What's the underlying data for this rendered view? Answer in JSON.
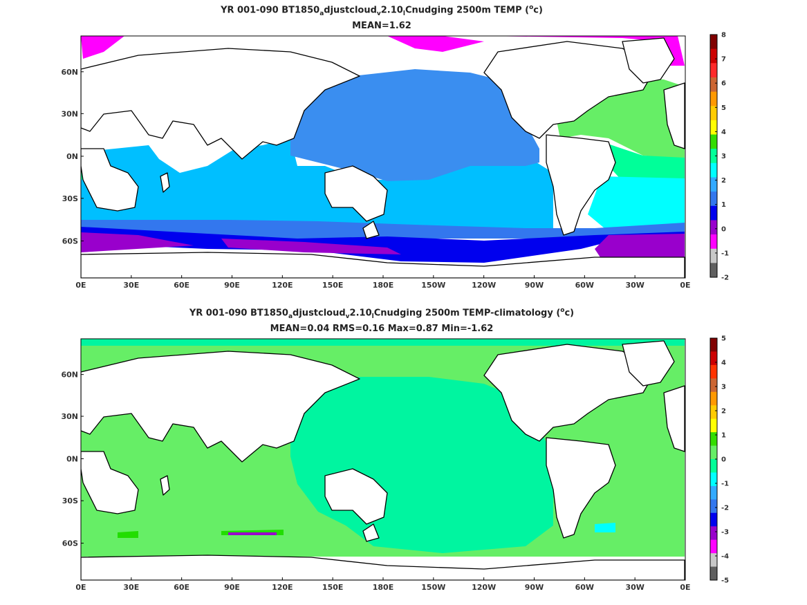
{
  "maps": [
    {
      "id": "top",
      "title_parts": [
        "YR 001-090 BT1850",
        "a",
        "djustcloud",
        "v",
        "2.10",
        "l",
        "Cnudging 2500m TEMP (",
        "o",
        "c)"
      ],
      "stats_line": "MEAN=1.62",
      "variable": "2500m TEMP",
      "units": "oc",
      "mean": 1.62,
      "colorbar": {
        "ticks": [
          "8",
          "7",
          "6",
          "5",
          "4",
          "3",
          "2",
          "1",
          "0",
          "-1",
          "-2"
        ],
        "colors": [
          "#800000",
          "#cc0000",
          "#ff2a2a",
          "#cc6633",
          "#ff9900",
          "#ffcc00",
          "#ffff00",
          "#33dd00",
          "#00ff99",
          "#00ffff",
          "#33aaff",
          "#3377ee",
          "#0000ee",
          "#9900cc",
          "#ff00ff",
          "#c8c8c8",
          "#606060"
        ]
      }
    },
    {
      "id": "bottom",
      "title_parts": [
        "YR 001-090 BT1850",
        "a",
        "djustcloud",
        "v",
        "2.10",
        "l",
        "Cnudging 2500m TEMP-climatology (",
        "o",
        "c)"
      ],
      "stats_line": "MEAN=0.04   RMS=0.16   Max=0.87   Min=-1.62",
      "variable": "2500m TEMP-climatology",
      "units": "oc",
      "mean": 0.04,
      "rms": 0.16,
      "max": 0.87,
      "min": -1.62,
      "colorbar": {
        "ticks": [
          "5",
          "4",
          "3",
          "2",
          "1",
          "0",
          "-1",
          "-2",
          "-3",
          "-4",
          "-5"
        ],
        "colors": [
          "#800000",
          "#cc0000",
          "#ff3300",
          "#cc6633",
          "#ff9900",
          "#ffcc00",
          "#ffff00",
          "#33dd00",
          "#66ee66",
          "#00ff99",
          "#00ffff",
          "#33aaff",
          "#3377ee",
          "#0000ee",
          "#9900cc",
          "#ff00ff",
          "#c8c8c8",
          "#606060"
        ]
      }
    }
  ],
  "x_ticks": [
    "0E",
    "30E",
    "60E",
    "90E",
    "120E",
    "150E",
    "180E",
    "150W",
    "120W",
    "90W",
    "60W",
    "30W",
    "0E"
  ],
  "y_ticks": [
    "60N",
    "30N",
    "0N",
    "30S",
    "60S"
  ],
  "colors": {
    "land": "#ffffff",
    "coast": "#000000",
    "top_pacific": "#3a8ef0",
    "top_indian": "#00bfff",
    "top_atl_north": "#66ee66",
    "top_atl_mid": "#00ff99",
    "top_atl_south": "#00ffff",
    "top_south_deep": "#0000ee",
    "top_south_mid": "#3377ee",
    "top_antarctic": "#9900cc",
    "top_arctic": "#ff00ff",
    "bot_main": "#00f5a0",
    "bot_light": "#66ee66",
    "bot_bright": "#22dd00"
  }
}
